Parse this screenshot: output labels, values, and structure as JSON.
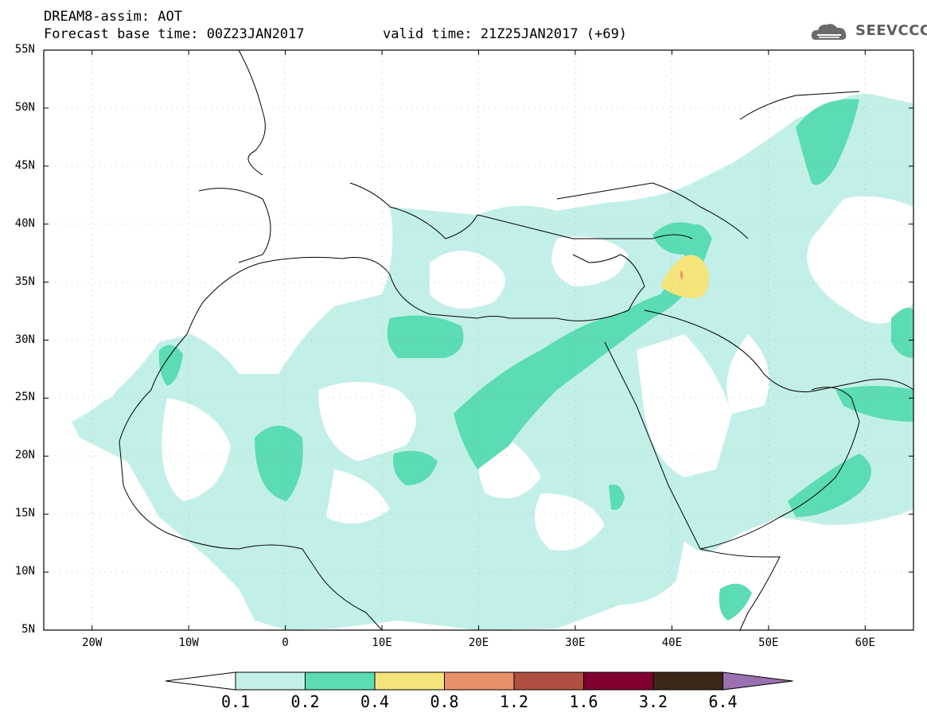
{
  "header": {
    "line1": "DREAM8-assim: AOT",
    "line2": "Forecast base time: 00Z23JAN2017",
    "line3": "valid time: 21Z25JAN2017 (+69)"
  },
  "logo": {
    "text": "SEEVCCC",
    "icon": "cloud-logo-icon",
    "color": "#5e5e5e"
  },
  "map": {
    "lon_range": [
      -25,
      65
    ],
    "lat_range": [
      5,
      55
    ],
    "lat_ticks": [
      "55N",
      "50N",
      "45N",
      "40N",
      "35N",
      "30N",
      "25N",
      "20N",
      "15N",
      "10N",
      "5N"
    ],
    "lon_ticks": [
      "20W",
      "10W",
      "0",
      "10E",
      "20E",
      "30E",
      "40E",
      "50E",
      "60E"
    ]
  },
  "colorbar": {
    "labels": [
      "0.1",
      "0.2",
      "0.4",
      "0.8",
      "1.2",
      "1.6",
      "3.2",
      "6.4"
    ],
    "colors": [
      "#c2f0e8",
      "#5cdcb4",
      "#f5e47a",
      "#e8906a",
      "#b05040",
      "#800030",
      "#3c2818",
      "#9a70b0"
    ]
  }
}
